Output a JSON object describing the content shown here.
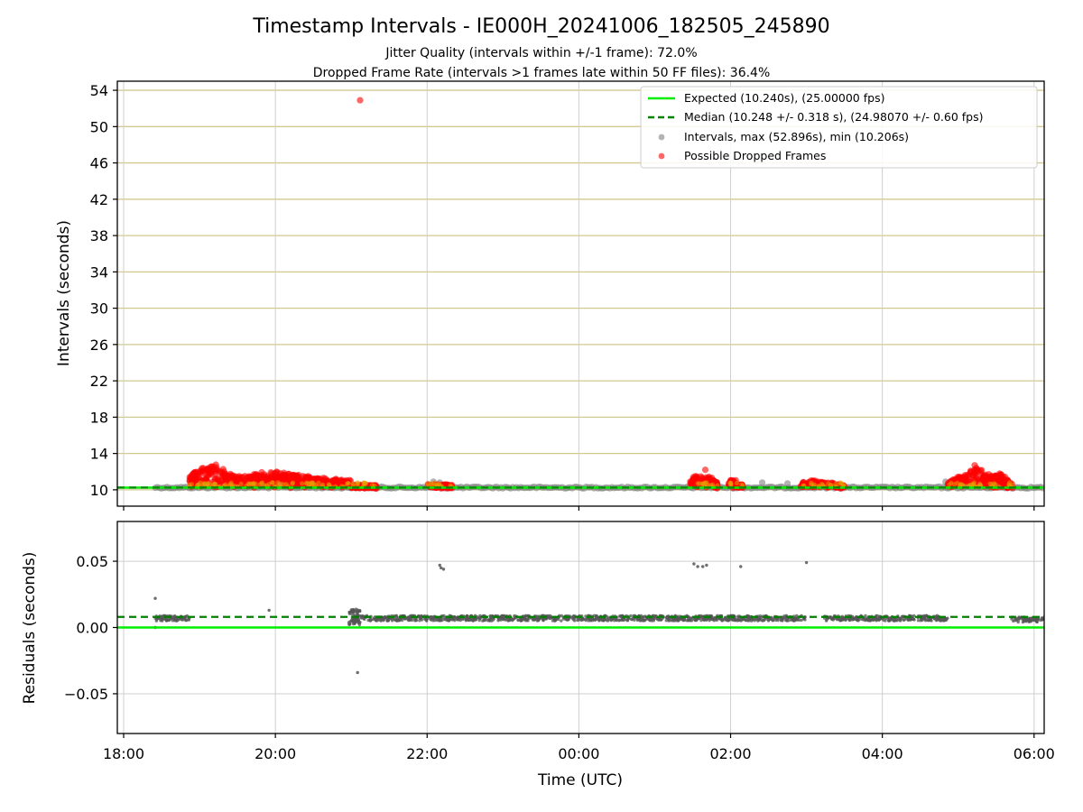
{
  "chart_data": [
    {
      "type": "scatter",
      "title": "Timestamp Intervals - IE000H_20241006_182505_245890",
      "subtitle_lines": [
        "Jitter Quality (intervals within +/-1 frame): 72.0%",
        "Dropped Frame Rate (intervals >1 frames late within 50 FF files): 36.4%"
      ],
      "xlabel": "",
      "ylabel": "Intervals (seconds)",
      "xlim": [
        "17:55",
        "06:08"
      ],
      "ylim": [
        8.2,
        55.0
      ],
      "yticks": [
        10,
        14,
        18,
        22,
        26,
        30,
        34,
        38,
        42,
        46,
        50,
        54
      ],
      "grid": true,
      "legend_position": "top-right",
      "legend": [
        "Expected (10.240s), (25.00000 fps)",
        "Median (10.248 +/- 0.318 s), (24.98070 +/- 0.60 fps)",
        "Intervals, max (52.896s), min (10.206s)",
        "Possible Dropped Frames"
      ],
      "expected_interval": 10.24,
      "median_interval": 10.248,
      "series": [
        {
          "name": "Intervals, max (52.896s), min (10.206s)",
          "color": "#808080",
          "segments": [
            {
              "x": [
                "18:25",
                "06:08"
              ],
              "y": 10.25
            }
          ],
          "points": [
            {
              "x": "22:05",
              "y": 10.9
            },
            {
              "x": "22:10",
              "y": 10.8
            },
            {
              "x": "02:25",
              "y": 10.8
            },
            {
              "x": "02:45",
              "y": 10.7
            },
            {
              "x": "04:50",
              "y": 10.9
            }
          ]
        },
        {
          "name": "Possible Dropped Frames",
          "color": "#ff0000",
          "clusters": [
            {
              "x": [
                "18:52",
                "21:00"
              ],
              "profile": [
                [
                  0.0,
                  11.3
                ],
                [
                  0.04,
                  12.0
                ],
                [
                  0.1,
                  12.6
                ],
                [
                  0.16,
                  12.8
                ],
                [
                  0.22,
                  12.0
                ],
                [
                  0.28,
                  11.3
                ],
                [
                  0.35,
                  11.5
                ],
                [
                  0.45,
                  11.8
                ],
                [
                  0.55,
                  11.9
                ],
                [
                  0.65,
                  11.6
                ],
                [
                  0.75,
                  11.4
                ],
                [
                  0.85,
                  11.2
                ],
                [
                  0.95,
                  11.0
                ],
                [
                  1.0,
                  10.9
                ]
              ]
            },
            {
              "x": [
                "21:00",
                "21:20"
              ],
              "profile": [
                [
                  0.0,
                  10.4
                ],
                [
                  1.0,
                  10.4
                ]
              ]
            },
            {
              "x": [
                "22:00",
                "22:20"
              ],
              "profile": [
                [
                  0.0,
                  10.5
                ],
                [
                  1.0,
                  10.4
                ]
              ]
            },
            {
              "x": [
                "01:28",
                "01:50"
              ],
              "profile": [
                [
                  0.0,
                  11.0
                ],
                [
                  0.3,
                  11.8
                ],
                [
                  0.5,
                  11.2
                ],
                [
                  0.7,
                  11.6
                ],
                [
                  1.0,
                  10.6
                ]
              ]
            },
            {
              "x": [
                "01:58",
                "02:10"
              ],
              "profile": [
                [
                  0.0,
                  10.9
                ],
                [
                  0.5,
                  11.0
                ],
                [
                  1.0,
                  10.4
                ]
              ]
            },
            {
              "x": [
                "02:55",
                "03:30"
              ],
              "profile": [
                [
                  0.0,
                  10.6
                ],
                [
                  0.3,
                  11.0
                ],
                [
                  0.6,
                  10.8
                ],
                [
                  1.0,
                  10.4
                ]
              ]
            },
            {
              "x": [
                "04:52",
                "05:43"
              ],
              "profile": [
                [
                  0.0,
                  10.8
                ],
                [
                  0.2,
                  11.5
                ],
                [
                  0.45,
                  12.5
                ],
                [
                  0.6,
                  11.6
                ],
                [
                  0.8,
                  11.8
                ],
                [
                  1.0,
                  10.5
                ]
              ]
            }
          ],
          "outliers": [
            {
              "x": "21:07",
              "y": 52.9
            },
            {
              "x": "01:40",
              "y": 12.2
            },
            {
              "x": "05:13",
              "y": 12.7
            }
          ]
        },
        {
          "name": "Expected (10.240s), (25.00000 fps)",
          "color": "#00ee00",
          "line": {
            "y": 10.24,
            "style": "solid"
          }
        },
        {
          "name": "Median (10.248 +/- 0.318 s), (24.98070 +/- 0.60 fps)",
          "color": "#008000",
          "line": {
            "y": 10.248,
            "style": "dashed"
          }
        }
      ]
    },
    {
      "type": "scatter",
      "title": "",
      "xlabel": "Time (UTC)",
      "ylabel": "Residuals (seconds)",
      "xlim": [
        "17:55",
        "06:08"
      ],
      "ylim": [
        -0.08,
        0.08
      ],
      "yticks": [
        -0.05,
        0.0,
        0.05
      ],
      "yticklabels": [
        "−0.05",
        "0.00",
        "0.05"
      ],
      "xticks": [
        "18:00",
        "20:00",
        "22:00",
        "00:00",
        "02:00",
        "04:00",
        "06:00"
      ],
      "grid": true,
      "expected_residual": 0.0,
      "median_residual": 0.008,
      "series": [
        {
          "name": "Residuals",
          "color": "#555555",
          "clusters": [
            {
              "x": [
                "18:25",
                "18:53"
              ],
              "y": 0.007
            },
            {
              "x": [
                "20:58",
                "21:07"
              ],
              "y": 0.012
            },
            {
              "x": [
                "20:58",
                "21:07"
              ],
              "y": 0.004
            },
            {
              "x": [
                "21:00",
                "22:30"
              ],
              "y": 0.007
            },
            {
              "x": [
                "22:30",
                "01:30"
              ],
              "y": 0.007
            },
            {
              "x": [
                "01:30",
                "03:00"
              ],
              "y": 0.007
            },
            {
              "x": [
                "03:14",
                "04:52"
              ],
              "y": 0.007
            },
            {
              "x": [
                "05:42",
                "06:08"
              ],
              "y": 0.006
            }
          ],
          "outliers": [
            {
              "x": "18:25",
              "y": 0.022
            },
            {
              "x": "18:25",
              "y": 0.0
            },
            {
              "x": "19:55",
              "y": 0.013
            },
            {
              "x": "21:05",
              "y": -0.034
            },
            {
              "x": "22:10",
              "y": 0.047
            },
            {
              "x": "22:11",
              "y": 0.045
            },
            {
              "x": "22:13",
              "y": 0.044
            },
            {
              "x": "01:31",
              "y": 0.048
            },
            {
              "x": "01:34",
              "y": 0.046
            },
            {
              "x": "01:38",
              "y": 0.046
            },
            {
              "x": "01:41",
              "y": 0.047
            },
            {
              "x": "02:08",
              "y": 0.046
            },
            {
              "x": "03:00",
              "y": 0.049
            }
          ]
        },
        {
          "name": "Expected",
          "color": "#00ee00",
          "line": {
            "y": 0.0,
            "style": "solid"
          }
        },
        {
          "name": "Median",
          "color": "#008000",
          "line": {
            "y": 0.008,
            "style": "dashed"
          }
        }
      ]
    }
  ],
  "colors": {
    "upper_grid": "#d3c98f",
    "lower_grid": "#cfcfcf",
    "vertical_grid": "#cfcfcf",
    "axes": "#000000"
  }
}
